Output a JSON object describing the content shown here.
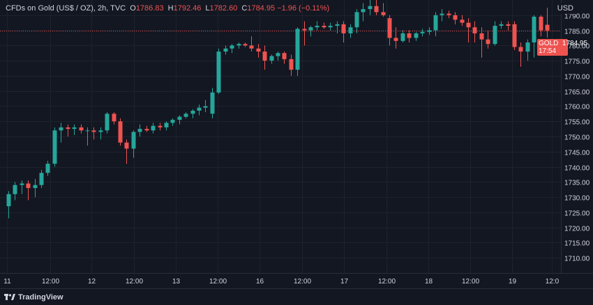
{
  "header": {
    "symbol": "CFDs on Gold (US$ / OZ), 2h, TVC",
    "o_label": "O",
    "o_value": "1786.83",
    "h_label": "H",
    "h_value": "1792.46",
    "l_label": "L",
    "l_value": "1782.60",
    "c_label": "C",
    "c_value": "1784.95",
    "change": "−1.96 (−0.11%)"
  },
  "axis_unit": "USD",
  "price_tag": {
    "symbol": "GOLD",
    "price": "1784.95",
    "countdown": "17:54"
  },
  "branding": "TradingView",
  "colors": {
    "background": "#131722",
    "up": "#26a69a",
    "down": "#ef5350",
    "grid": "#1e222d",
    "text": "#d1d4dc"
  },
  "chart_data": {
    "type": "candlestick",
    "title": "CFDs on Gold (US$ / OZ), 2h, TVC",
    "ylabel": "USD",
    "ylim": [
      1705,
      1795
    ],
    "y_ticks": [
      1710,
      1715,
      1720,
      1725,
      1730,
      1735,
      1740,
      1745,
      1750,
      1755,
      1760,
      1765,
      1770,
      1775,
      1780,
      1785,
      1790
    ],
    "x_ticks": [
      "11",
      "12:00",
      "12",
      "12:00",
      "13",
      "12:00",
      "16",
      "12:00",
      "17",
      "12:00",
      "18",
      "12:00",
      "19",
      "12:0"
    ],
    "last_price": 1784.95,
    "grid": true,
    "candles": [
      {
        "o": 1727.0,
        "h": 1732.0,
        "l": 1723.0,
        "c": 1731.0
      },
      {
        "o": 1731.0,
        "h": 1735.0,
        "l": 1729.0,
        "c": 1734.0
      },
      {
        "o": 1734.0,
        "h": 1735.5,
        "l": 1731.0,
        "c": 1734.5
      },
      {
        "o": 1734.5,
        "h": 1735.5,
        "l": 1729.0,
        "c": 1733.0
      },
      {
        "o": 1733.0,
        "h": 1736.0,
        "l": 1730.0,
        "c": 1734.0
      },
      {
        "o": 1734.0,
        "h": 1739.0,
        "l": 1733.0,
        "c": 1738.0
      },
      {
        "o": 1738.0,
        "h": 1742.0,
        "l": 1737.0,
        "c": 1741.0
      },
      {
        "o": 1741.0,
        "h": 1753.0,
        "l": 1740.0,
        "c": 1752.0
      },
      {
        "o": 1752.0,
        "h": 1754.5,
        "l": 1748.0,
        "c": 1753.0
      },
      {
        "o": 1753.0,
        "h": 1754.0,
        "l": 1750.0,
        "c": 1752.5
      },
      {
        "o": 1752.5,
        "h": 1754.0,
        "l": 1750.5,
        "c": 1753.0
      },
      {
        "o": 1753.0,
        "h": 1754.0,
        "l": 1751.0,
        "c": 1752.0
      },
      {
        "o": 1752.0,
        "h": 1753.0,
        "l": 1747.0,
        "c": 1752.0
      },
      {
        "o": 1752.0,
        "h": 1753.0,
        "l": 1749.0,
        "c": 1751.5
      },
      {
        "o": 1751.5,
        "h": 1753.0,
        "l": 1749.0,
        "c": 1752.0
      },
      {
        "o": 1752.0,
        "h": 1758.0,
        "l": 1751.0,
        "c": 1757.5
      },
      {
        "o": 1757.5,
        "h": 1758.0,
        "l": 1754.0,
        "c": 1755.0
      },
      {
        "o": 1755.0,
        "h": 1756.0,
        "l": 1747.0,
        "c": 1748.0
      },
      {
        "o": 1748.0,
        "h": 1749.0,
        "l": 1741.0,
        "c": 1746.0
      },
      {
        "o": 1746.0,
        "h": 1752.0,
        "l": 1743.0,
        "c": 1751.5
      },
      {
        "o": 1751.5,
        "h": 1754.0,
        "l": 1750.0,
        "c": 1752.5
      },
      {
        "o": 1752.5,
        "h": 1753.5,
        "l": 1751.5,
        "c": 1752.0
      },
      {
        "o": 1752.0,
        "h": 1754.5,
        "l": 1751.0,
        "c": 1753.5
      },
      {
        "o": 1753.5,
        "h": 1754.5,
        "l": 1752.0,
        "c": 1753.0
      },
      {
        "o": 1753.0,
        "h": 1755.0,
        "l": 1752.0,
        "c": 1754.5
      },
      {
        "o": 1754.5,
        "h": 1756.0,
        "l": 1753.5,
        "c": 1755.5
      },
      {
        "o": 1755.5,
        "h": 1757.0,
        "l": 1754.0,
        "c": 1756.5
      },
      {
        "o": 1756.5,
        "h": 1758.0,
        "l": 1756.0,
        "c": 1757.5
      },
      {
        "o": 1757.5,
        "h": 1759.0,
        "l": 1756.0,
        "c": 1758.5
      },
      {
        "o": 1758.5,
        "h": 1760.5,
        "l": 1757.0,
        "c": 1759.5
      },
      {
        "o": 1759.5,
        "h": 1762.0,
        "l": 1758.0,
        "c": 1760.0
      },
      {
        "o": 1757.5,
        "h": 1766.0,
        "l": 1756.0,
        "c": 1764.5
      },
      {
        "o": 1764.5,
        "h": 1779.0,
        "l": 1764.0,
        "c": 1778.0
      },
      {
        "o": 1778.0,
        "h": 1780.0,
        "l": 1777.0,
        "c": 1779.0
      },
      {
        "o": 1779.0,
        "h": 1780.5,
        "l": 1777.5,
        "c": 1780.0
      },
      {
        "o": 1780.0,
        "h": 1781.0,
        "l": 1779.0,
        "c": 1780.5
      },
      {
        "o": 1780.5,
        "h": 1781.0,
        "l": 1779.5,
        "c": 1780.0
      },
      {
        "o": 1780.0,
        "h": 1783.0,
        "l": 1778.0,
        "c": 1779.0
      },
      {
        "o": 1779.0,
        "h": 1780.5,
        "l": 1776.0,
        "c": 1778.0
      },
      {
        "o": 1778.0,
        "h": 1780.0,
        "l": 1772.0,
        "c": 1775.0
      },
      {
        "o": 1775.0,
        "h": 1777.0,
        "l": 1774.0,
        "c": 1776.5
      },
      {
        "o": 1776.5,
        "h": 1778.0,
        "l": 1775.0,
        "c": 1777.5
      },
      {
        "o": 1777.5,
        "h": 1778.0,
        "l": 1774.0,
        "c": 1775.5
      },
      {
        "o": 1775.5,
        "h": 1777.0,
        "l": 1770.0,
        "c": 1772.0
      },
      {
        "o": 1772.0,
        "h": 1786.0,
        "l": 1770.0,
        "c": 1785.5
      },
      {
        "o": 1785.5,
        "h": 1788.0,
        "l": 1780.0,
        "c": 1785.0
      },
      {
        "o": 1785.0,
        "h": 1786.5,
        "l": 1783.0,
        "c": 1786.0
      },
      {
        "o": 1786.0,
        "h": 1788.0,
        "l": 1785.0,
        "c": 1786.5
      },
      {
        "o": 1786.5,
        "h": 1787.5,
        "l": 1785.5,
        "c": 1786.0
      },
      {
        "o": 1786.0,
        "h": 1787.5,
        "l": 1785.0,
        "c": 1786.5
      },
      {
        "o": 1786.5,
        "h": 1788.0,
        "l": 1784.0,
        "c": 1787.0
      },
      {
        "o": 1787.0,
        "h": 1788.0,
        "l": 1781.0,
        "c": 1784.0
      },
      {
        "o": 1784.0,
        "h": 1787.0,
        "l": 1782.5,
        "c": 1786.0
      },
      {
        "o": 1786.0,
        "h": 1792.0,
        "l": 1784.0,
        "c": 1791.0
      },
      {
        "o": 1791.0,
        "h": 1794.0,
        "l": 1788.0,
        "c": 1792.0
      },
      {
        "o": 1792.0,
        "h": 1795.0,
        "l": 1790.0,
        "c": 1793.0
      },
      {
        "o": 1793.0,
        "h": 1795.0,
        "l": 1790.0,
        "c": 1791.0
      },
      {
        "o": 1791.0,
        "h": 1794.0,
        "l": 1789.5,
        "c": 1790.0
      },
      {
        "o": 1789.0,
        "h": 1790.0,
        "l": 1780.0,
        "c": 1782.5
      },
      {
        "o": 1782.5,
        "h": 1786.0,
        "l": 1779.0,
        "c": 1781.5
      },
      {
        "o": 1781.5,
        "h": 1785.0,
        "l": 1781.0,
        "c": 1784.0
      },
      {
        "o": 1784.0,
        "h": 1785.0,
        "l": 1781.0,
        "c": 1782.5
      },
      {
        "o": 1782.5,
        "h": 1784.5,
        "l": 1781.5,
        "c": 1784.0
      },
      {
        "o": 1784.0,
        "h": 1785.5,
        "l": 1783.0,
        "c": 1784.5
      },
      {
        "o": 1784.5,
        "h": 1786.0,
        "l": 1783.5,
        "c": 1785.0
      },
      {
        "o": 1785.0,
        "h": 1791.0,
        "l": 1783.0,
        "c": 1790.0
      },
      {
        "o": 1790.0,
        "h": 1792.0,
        "l": 1788.0,
        "c": 1790.5
      },
      {
        "o": 1790.5,
        "h": 1791.5,
        "l": 1789.0,
        "c": 1790.0
      },
      {
        "o": 1790.0,
        "h": 1791.0,
        "l": 1787.0,
        "c": 1788.5
      },
      {
        "o": 1788.5,
        "h": 1790.0,
        "l": 1786.5,
        "c": 1787.5
      },
      {
        "o": 1787.5,
        "h": 1789.0,
        "l": 1781.0,
        "c": 1786.0
      },
      {
        "o": 1786.0,
        "h": 1788.0,
        "l": 1781.0,
        "c": 1784.0
      },
      {
        "o": 1784.0,
        "h": 1786.0,
        "l": 1776.0,
        "c": 1782.0
      },
      {
        "o": 1782.0,
        "h": 1785.0,
        "l": 1779.0,
        "c": 1780.5
      },
      {
        "o": 1780.5,
        "h": 1788.0,
        "l": 1780.0,
        "c": 1786.5
      },
      {
        "o": 1786.5,
        "h": 1788.0,
        "l": 1785.5,
        "c": 1787.0
      },
      {
        "o": 1787.0,
        "h": 1788.0,
        "l": 1785.0,
        "c": 1786.5
      },
      {
        "o": 1787.0,
        "h": 1788.0,
        "l": 1778.5,
        "c": 1779.5
      },
      {
        "o": 1779.5,
        "h": 1781.0,
        "l": 1773.0,
        "c": 1778.0
      },
      {
        "o": 1778.0,
        "h": 1782.0,
        "l": 1775.0,
        "c": 1781.0
      },
      {
        "o": 1781.0,
        "h": 1790.0,
        "l": 1776.0,
        "c": 1789.5
      },
      {
        "o": 1789.5,
        "h": 1790.0,
        "l": 1783.0,
        "c": 1785.0
      },
      {
        "o": 1786.83,
        "h": 1792.46,
        "l": 1782.6,
        "c": 1784.95
      }
    ]
  }
}
